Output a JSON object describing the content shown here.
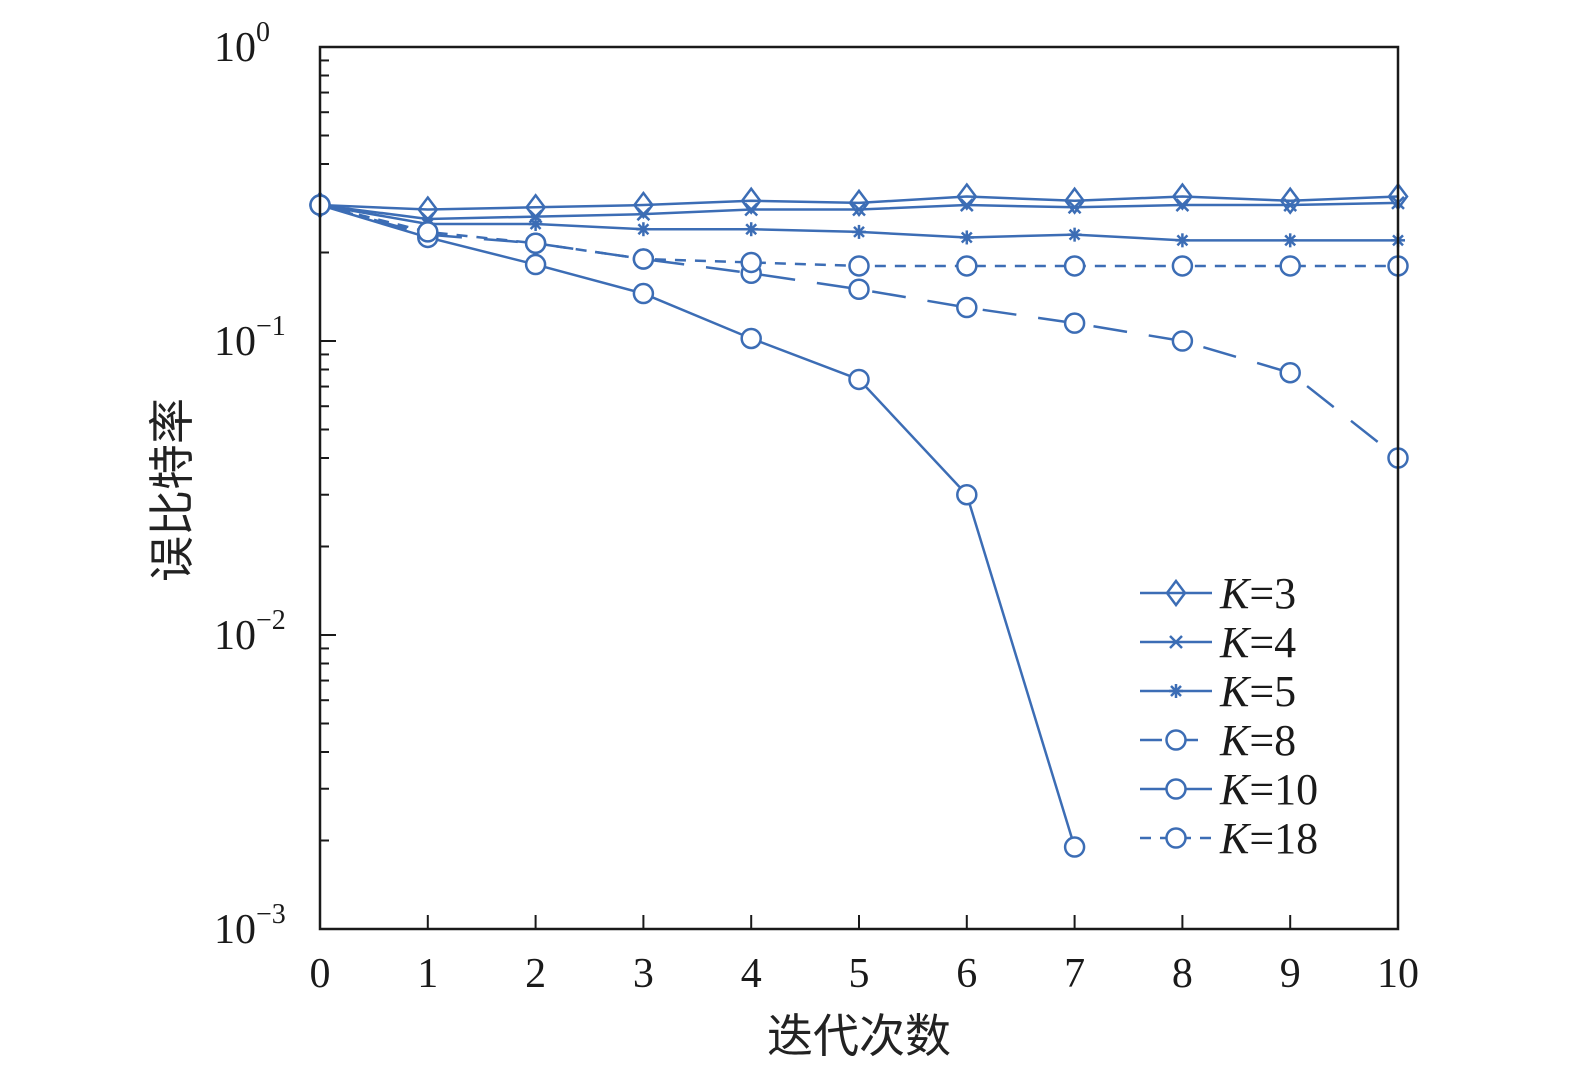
{
  "chart_data": {
    "type": "line",
    "title": "",
    "xlabel": "迭代次数",
    "ylabel": "误比特率",
    "y_scale": "log",
    "xlim": [
      0,
      10
    ],
    "ylim": [
      0.001,
      1
    ],
    "x_ticks": [
      "0",
      "1",
      "2",
      "3",
      "4",
      "5",
      "6",
      "7",
      "8",
      "9",
      "10"
    ],
    "y_ticks": [
      {
        "base": "10",
        "exp": "0"
      },
      {
        "base": "10",
        "exp": "−1"
      },
      {
        "base": "10",
        "exp": "−2"
      },
      {
        "base": "10",
        "exp": "−3"
      }
    ],
    "grid": false,
    "legend_position": "bottom-right",
    "color": "#3c6db5",
    "series": [
      {
        "name": "K=3",
        "label_var": "K",
        "label_val": "=3",
        "marker": "diamond",
        "dash": "solid",
        "x": [
          0,
          1,
          2,
          3,
          4,
          5,
          6,
          7,
          8,
          9,
          10
        ],
        "y": [
          0.29,
          0.28,
          0.285,
          0.29,
          0.3,
          0.295,
          0.31,
          0.3,
          0.31,
          0.3,
          0.31
        ]
      },
      {
        "name": "K=4",
        "label_var": "K",
        "label_val": "=4",
        "marker": "x",
        "dash": "solid",
        "x": [
          0,
          1,
          2,
          3,
          4,
          5,
          6,
          7,
          8,
          9,
          10
        ],
        "y": [
          0.29,
          0.26,
          0.265,
          0.27,
          0.28,
          0.28,
          0.29,
          0.285,
          0.29,
          0.29,
          0.295
        ]
      },
      {
        "name": "K=5",
        "label_var": "K",
        "label_val": "=5",
        "marker": "asterisk",
        "dash": "solid",
        "x": [
          0,
          1,
          2,
          3,
          4,
          5,
          6,
          7,
          8,
          9,
          10
        ],
        "y": [
          0.29,
          0.25,
          0.25,
          0.24,
          0.24,
          0.235,
          0.225,
          0.23,
          0.22,
          0.22,
          0.22
        ]
      },
      {
        "name": "K=8",
        "label_var": "K",
        "label_val": "=8",
        "marker": "circle",
        "dash": "longdash",
        "x": [
          0,
          1,
          2,
          3,
          4,
          5,
          6,
          7,
          8,
          9,
          10
        ],
        "y": [
          0.29,
          0.23,
          0.215,
          0.19,
          0.17,
          0.15,
          0.13,
          0.115,
          0.1,
          0.078,
          0.04
        ]
      },
      {
        "name": "K=10",
        "label_var": "K",
        "label_val": "=10",
        "marker": "circle",
        "dash": "solid",
        "x": [
          0,
          1,
          2,
          3,
          4,
          5,
          6,
          7
        ],
        "y": [
          0.29,
          0.225,
          0.182,
          0.145,
          0.102,
          0.074,
          0.03,
          0.0019
        ]
      },
      {
        "name": "K=18",
        "label_var": "K",
        "label_val": "=18",
        "marker": "circle",
        "dash": "shortdash",
        "x": [
          0,
          1,
          2,
          3,
          4,
          5,
          6,
          7,
          8,
          9,
          10
        ],
        "y": [
          0.29,
          0.235,
          0.215,
          0.19,
          0.185,
          0.18,
          0.18,
          0.18,
          0.18,
          0.18,
          0.18
        ]
      }
    ]
  }
}
